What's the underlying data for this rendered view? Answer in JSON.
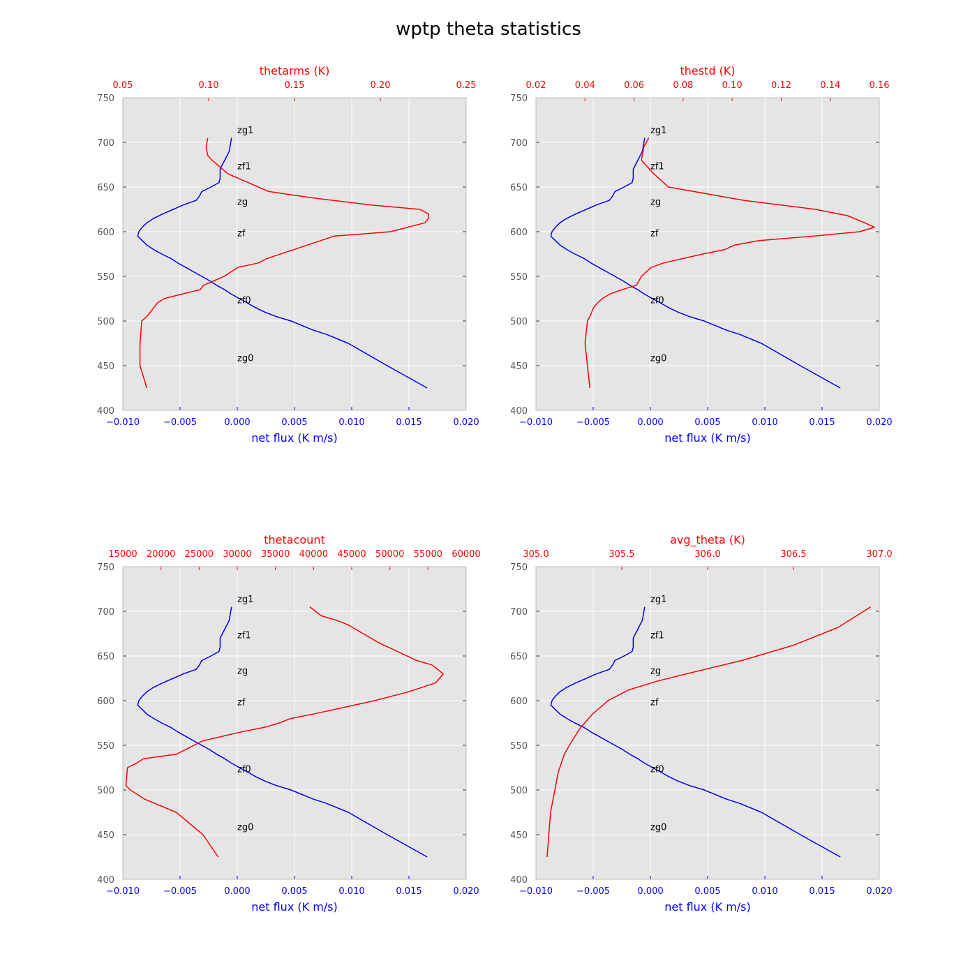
{
  "figure": {
    "title": "wptp theta statistics",
    "colors": {
      "background": "#ffffff",
      "axes_face": "#e5e5e5",
      "grid": "#ffffff",
      "bottom_series": "#0000ff",
      "top_series": "#ff0000",
      "left_ticks": "#555555",
      "annotation": "#000000"
    }
  },
  "chart_data": [
    {
      "type": "line",
      "grid": true,
      "ylim": [
        400,
        750
      ],
      "yticks": [
        "400",
        "450",
        "500",
        "550",
        "600",
        "650",
        "700",
        "750"
      ],
      "bottom_axis": {
        "label": "net flux (K m/s)",
        "range": [
          -0.01,
          0.02
        ],
        "ticks": [
          -0.01,
          -0.005,
          0,
          0.005,
          0.01,
          0.015,
          0.02
        ],
        "tick_labels": [
          "−0.010",
          "−0.005",
          "0.000",
          "0.005",
          "0.010",
          "0.015",
          "0.020"
        ]
      },
      "top_axis": {
        "label": "thetarms (K)",
        "range": [
          0.05,
          0.25
        ],
        "ticks": [
          0.05,
          0.1,
          0.15,
          0.2,
          0.25
        ],
        "tick_labels": [
          "0.05",
          "0.10",
          "0.15",
          "0.20",
          "0.25"
        ]
      },
      "annotations": [
        {
          "text": "zg1",
          "x": 0.0,
          "y": 710
        },
        {
          "text": "zf1",
          "x": 0.0,
          "y": 670
        },
        {
          "text": "zg",
          "x": 0.0,
          "y": 630
        },
        {
          "text": "zf",
          "x": 0.0,
          "y": 595
        },
        {
          "text": "zf0",
          "x": 0.0,
          "y": 520
        },
        {
          "text": "zg0",
          "x": 0.0,
          "y": 455
        }
      ],
      "series": [
        {
          "axis": "bottom",
          "color": "#0000ff",
          "x": [
            0.0166,
            0.0131,
            0.0097,
            0.0078,
            0.0066,
            0.0047,
            0.0034,
            0.0024,
            0.0016,
            0.0009,
            0.0002,
            -0.0005,
            -0.0011,
            -0.0018,
            -0.0024,
            -0.0031,
            -0.0038,
            -0.0045,
            -0.0052,
            -0.0058,
            -0.0066,
            -0.0073,
            -0.0079,
            -0.0083,
            -0.0087,
            -0.0086,
            -0.0083,
            -0.0079,
            -0.0073,
            -0.0065,
            -0.0056,
            -0.0047,
            -0.0036,
            -0.0033,
            -0.0031,
            -0.0023,
            -0.0016,
            -0.0015,
            -0.0015,
            -0.0011,
            -0.0007,
            -0.0005
          ],
          "y": [
            425,
            450,
            475,
            485,
            490,
            500,
            505,
            510,
            515,
            520,
            525,
            530,
            535,
            540,
            545,
            550,
            555,
            560,
            565,
            570,
            575,
            580,
            585,
            590,
            595,
            600,
            605,
            610,
            615,
            620,
            625,
            630,
            635,
            640,
            645,
            650,
            655,
            660,
            670,
            680,
            690,
            705
          ]
        },
        {
          "axis": "top",
          "color": "#ff0000",
          "x": [
            0.064,
            0.06,
            0.06,
            0.061,
            0.064,
            0.068,
            0.07,
            0.074,
            0.084,
            0.095,
            0.097,
            0.109,
            0.117,
            0.129,
            0.134,
            0.173,
            0.206,
            0.226,
            0.228,
            0.228,
            0.223,
            0.194,
            0.16,
            0.135,
            0.123,
            0.111,
            0.102,
            0.0995,
            0.0985,
            0.0995
          ],
          "y": [
            425,
            450,
            475,
            500,
            505,
            515,
            520,
            525,
            530,
            535,
            540,
            550,
            560,
            565,
            570,
            595,
            600,
            610,
            615,
            620,
            625,
            630,
            638,
            645,
            655,
            665,
            680,
            685,
            695,
            705
          ]
        }
      ]
    },
    {
      "type": "line",
      "grid": true,
      "ylim": [
        400,
        750
      ],
      "yticks": [
        "400",
        "450",
        "500",
        "550",
        "600",
        "650",
        "700",
        "750"
      ],
      "bottom_axis": {
        "label": "net flux (K m/s)",
        "range": [
          -0.01,
          0.02
        ],
        "ticks": [
          -0.01,
          -0.005,
          0,
          0.005,
          0.01,
          0.015,
          0.02
        ],
        "tick_labels": [
          "−0.010",
          "−0.005",
          "0.000",
          "0.005",
          "0.010",
          "0.015",
          "0.020"
        ]
      },
      "top_axis": {
        "label": "thestd (K)",
        "range": [
          0.02,
          0.16
        ],
        "ticks": [
          0.02,
          0.04,
          0.06,
          0.08,
          0.1,
          0.12,
          0.14,
          0.16
        ],
        "tick_labels": [
          "0.02",
          "0.04",
          "0.06",
          "0.08",
          "0.10",
          "0.12",
          "0.14",
          "0.16"
        ]
      },
      "annotations": [
        {
          "text": "zg1",
          "x": 0.0,
          "y": 710
        },
        {
          "text": "zf1",
          "x": 0.0,
          "y": 670
        },
        {
          "text": "zg",
          "x": 0.0,
          "y": 630
        },
        {
          "text": "zf",
          "x": 0.0,
          "y": 595
        },
        {
          "text": "zf0",
          "x": 0.0,
          "y": 520
        },
        {
          "text": "zg0",
          "x": 0.0,
          "y": 455
        }
      ],
      "series": [
        {
          "axis": "bottom",
          "color": "#0000ff",
          "x": [
            0.0166,
            0.0131,
            0.0097,
            0.0078,
            0.0066,
            0.0047,
            0.0034,
            0.0024,
            0.0016,
            0.0009,
            0.0002,
            -0.0005,
            -0.0011,
            -0.0018,
            -0.0024,
            -0.0031,
            -0.0038,
            -0.0045,
            -0.0052,
            -0.0058,
            -0.0066,
            -0.0073,
            -0.0079,
            -0.0083,
            -0.0087,
            -0.0086,
            -0.0083,
            -0.0079,
            -0.0073,
            -0.0065,
            -0.0056,
            -0.0047,
            -0.0036,
            -0.0033,
            -0.0031,
            -0.0023,
            -0.0016,
            -0.0015,
            -0.0015,
            -0.0011,
            -0.0007,
            -0.0005
          ],
          "y": [
            425,
            450,
            475,
            485,
            490,
            500,
            505,
            510,
            515,
            520,
            525,
            530,
            535,
            540,
            545,
            550,
            555,
            560,
            565,
            570,
            575,
            580,
            585,
            590,
            595,
            600,
            605,
            610,
            615,
            620,
            625,
            630,
            635,
            640,
            645,
            650,
            655,
            660,
            670,
            680,
            690,
            705
          ]
        },
        {
          "axis": "top",
          "color": "#ff0000",
          "x": [
            0.042,
            0.041,
            0.04,
            0.041,
            0.042,
            0.0435,
            0.045,
            0.047,
            0.05,
            0.055,
            0.061,
            0.063,
            0.065,
            0.067,
            0.072,
            0.08,
            0.088,
            0.097,
            0.101,
            0.111,
            0.133,
            0.152,
            0.158,
            0.154,
            0.147,
            0.134,
            0.105,
            0.074,
            0.068,
            0.063,
            0.064,
            0.066
          ],
          "y": [
            425,
            450,
            475,
            500,
            505,
            515,
            520,
            525,
            530,
            535,
            540,
            550,
            555,
            560,
            565,
            570,
            575,
            580,
            585,
            590,
            595,
            600,
            605,
            610,
            618,
            625,
            635,
            650,
            665,
            680,
            695,
            705
          ]
        }
      ]
    },
    {
      "type": "line",
      "grid": true,
      "ylim": [
        400,
        750
      ],
      "yticks": [
        "400",
        "450",
        "500",
        "550",
        "600",
        "650",
        "700",
        "750"
      ],
      "bottom_axis": {
        "label": "net flux (K m/s)",
        "range": [
          -0.01,
          0.02
        ],
        "ticks": [
          -0.01,
          -0.005,
          0,
          0.005,
          0.01,
          0.015,
          0.02
        ],
        "tick_labels": [
          "−0.010",
          "−0.005",
          "0.000",
          "0.005",
          "0.010",
          "0.015",
          "0.020"
        ]
      },
      "top_axis": {
        "label": "thetacount",
        "range": [
          15000,
          60000
        ],
        "ticks": [
          15000,
          20000,
          25000,
          30000,
          35000,
          40000,
          45000,
          50000,
          55000,
          60000
        ],
        "tick_labels": [
          "15000",
          "20000",
          "25000",
          "30000",
          "35000",
          "40000",
          "45000",
          "50000",
          "55000",
          "60000"
        ]
      },
      "annotations": [
        {
          "text": "zg1",
          "x": 0.0,
          "y": 710
        },
        {
          "text": "zf1",
          "x": 0.0,
          "y": 670
        },
        {
          "text": "zg",
          "x": 0.0,
          "y": 630
        },
        {
          "text": "zf",
          "x": 0.0,
          "y": 595
        },
        {
          "text": "zf0",
          "x": 0.0,
          "y": 520
        },
        {
          "text": "zg0",
          "x": 0.0,
          "y": 455
        }
      ],
      "series": [
        {
          "axis": "bottom",
          "color": "#0000ff",
          "x": [
            0.0166,
            0.0131,
            0.0097,
            0.0078,
            0.0066,
            0.0047,
            0.0034,
            0.0024,
            0.0016,
            0.0009,
            0.0002,
            -0.0005,
            -0.0011,
            -0.0018,
            -0.0024,
            -0.0031,
            -0.0038,
            -0.0045,
            -0.0052,
            -0.0058,
            -0.0066,
            -0.0073,
            -0.0079,
            -0.0083,
            -0.0087,
            -0.0086,
            -0.0083,
            -0.0079,
            -0.0073,
            -0.0065,
            -0.0056,
            -0.0047,
            -0.0036,
            -0.0033,
            -0.0031,
            -0.0023,
            -0.0016,
            -0.0015,
            -0.0015,
            -0.0011,
            -0.0007,
            -0.0005
          ],
          "y": [
            425,
            450,
            475,
            485,
            490,
            500,
            505,
            510,
            515,
            520,
            525,
            530,
            535,
            540,
            545,
            550,
            555,
            560,
            565,
            570,
            575,
            580,
            585,
            590,
            595,
            600,
            605,
            610,
            615,
            620,
            625,
            630,
            635,
            640,
            645,
            650,
            655,
            660,
            670,
            680,
            690,
            705
          ]
        },
        {
          "axis": "top",
          "color": "#ff0000",
          "x": [
            27500,
            25500,
            22000,
            17800,
            16000,
            15400,
            15500,
            15600,
            16800,
            17700,
            22000,
            25500,
            30500,
            33500,
            35500,
            37000,
            40000,
            48000,
            52500,
            56000,
            57000,
            55500,
            53500,
            51000,
            48500,
            46500,
            44500,
            43000,
            41000,
            39500
          ],
          "y": [
            425,
            450,
            475,
            490,
            500,
            505,
            515,
            525,
            530,
            535,
            540,
            555,
            565,
            570,
            575,
            580,
            585,
            600,
            610,
            620,
            630,
            640,
            645,
            655,
            665,
            675,
            685,
            690,
            695,
            705
          ]
        }
      ]
    },
    {
      "type": "line",
      "grid": true,
      "ylim": [
        400,
        750
      ],
      "yticks": [
        "400",
        "450",
        "500",
        "550",
        "600",
        "650",
        "700",
        "750"
      ],
      "bottom_axis": {
        "label": "net flux (K m/s)",
        "range": [
          -0.01,
          0.02
        ],
        "ticks": [
          -0.01,
          -0.005,
          0,
          0.005,
          0.01,
          0.015,
          0.02
        ],
        "tick_labels": [
          "−0.010",
          "−0.005",
          "0.000",
          "0.005",
          "0.010",
          "0.015",
          "0.020"
        ]
      },
      "top_axis": {
        "label": "avg_theta (K)",
        "range": [
          305.0,
          307.0
        ],
        "ticks": [
          305.0,
          305.5,
          306.0,
          306.5,
          307.0
        ],
        "tick_labels": [
          "305.0",
          "305.5",
          "306.0",
          "306.5",
          "307.0"
        ]
      },
      "annotations": [
        {
          "text": "zg1",
          "x": 0.0,
          "y": 710
        },
        {
          "text": "zf1",
          "x": 0.0,
          "y": 670
        },
        {
          "text": "zg",
          "x": 0.0,
          "y": 630
        },
        {
          "text": "zf",
          "x": 0.0,
          "y": 595
        },
        {
          "text": "zf0",
          "x": 0.0,
          "y": 520
        },
        {
          "text": "zg0",
          "x": 0.0,
          "y": 455
        }
      ],
      "series": [
        {
          "axis": "bottom",
          "color": "#0000ff",
          "x": [
            0.0166,
            0.0131,
            0.0097,
            0.0078,
            0.0066,
            0.0047,
            0.0034,
            0.0024,
            0.0016,
            0.0009,
            0.0002,
            -0.0005,
            -0.0011,
            -0.0018,
            -0.0024,
            -0.0031,
            -0.0038,
            -0.0045,
            -0.0052,
            -0.0058,
            -0.0066,
            -0.0073,
            -0.0079,
            -0.0083,
            -0.0087,
            -0.0086,
            -0.0083,
            -0.0079,
            -0.0073,
            -0.0065,
            -0.0056,
            -0.0047,
            -0.0036,
            -0.0033,
            -0.0031,
            -0.0023,
            -0.0016,
            -0.0015,
            -0.0015,
            -0.0011,
            -0.0007,
            -0.0005
          ],
          "y": [
            425,
            450,
            475,
            485,
            490,
            500,
            505,
            510,
            515,
            520,
            525,
            530,
            535,
            540,
            545,
            550,
            555,
            560,
            565,
            570,
            575,
            580,
            585,
            590,
            595,
            600,
            605,
            610,
            615,
            620,
            625,
            630,
            635,
            640,
            645,
            650,
            655,
            660,
            670,
            680,
            690,
            705
          ]
        },
        {
          "axis": "top",
          "color": "#ff0000",
          "x": [
            305.065,
            305.075,
            305.085,
            305.11,
            305.13,
            305.165,
            305.21,
            305.26,
            305.33,
            305.42,
            305.54,
            305.71,
            305.92,
            306.2,
            306.5,
            306.76,
            306.95
          ],
          "y": [
            425,
            450,
            475,
            500,
            520,
            540,
            555,
            570,
            585,
            600,
            612,
            622,
            632,
            645,
            662,
            682,
            705
          ]
        }
      ]
    }
  ]
}
